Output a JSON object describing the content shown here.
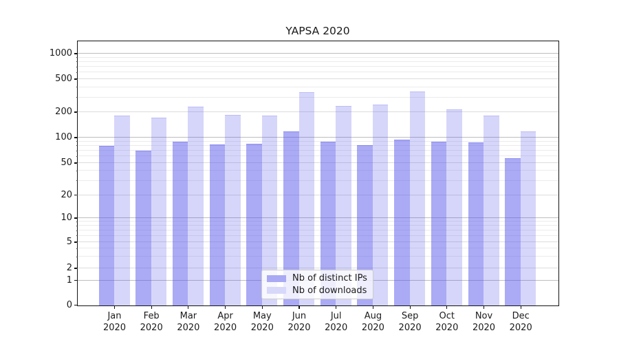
{
  "title": "YAPSA 2020",
  "legend": {
    "items": [
      {
        "label": "Nb of distinct IPs",
        "swatch_color": "#a9a9f4"
      },
      {
        "label": "Nb of downloads",
        "swatch_color": "#d8d8fa"
      }
    ]
  },
  "y_axis": {
    "tick_labels": [
      "0",
      "1",
      "2",
      "5",
      "10",
      "20",
      "50",
      "100",
      "200",
      "500",
      "1000"
    ],
    "tick_values": [
      0,
      1,
      2,
      5,
      10,
      20,
      50,
      100,
      200,
      500,
      1000
    ]
  },
  "x_axis": {
    "months": [
      "Jan",
      "Feb",
      "Mar",
      "Apr",
      "May",
      "Jun",
      "Jul",
      "Aug",
      "Sep",
      "Oct",
      "Nov",
      "Dec"
    ],
    "year": "2020"
  },
  "colors": {
    "bar_distinct_ips_fill": "rgba(85,85,235,0.5)",
    "bar_distinct_ips_edge": "rgba(85,85,235,0.35)",
    "bar_downloads_fill": "rgba(85,85,235,0.24)",
    "bar_downloads_edge": "rgba(85,85,235,0.2)",
    "grid_major": "#bdbdbd",
    "grid_labeled_minor": "#dcdcdc",
    "grid_minor": "#ebebeb",
    "axis_text": "#1a1a1a"
  },
  "chart_data": {
    "type": "bar",
    "title": "YAPSA 2020",
    "categories": [
      "Jan 2020",
      "Feb 2020",
      "Mar 2020",
      "Apr 2020",
      "May 2020",
      "Jun 2020",
      "Jul 2020",
      "Aug 2020",
      "Sep 2020",
      "Oct 2020",
      "Nov 2020",
      "Dec 2020"
    ],
    "series": [
      {
        "name": "Nb of distinct IPs",
        "values": [
          80,
          71,
          91,
          83,
          86,
          120,
          91,
          82,
          95,
          90,
          88,
          58
        ]
      },
      {
        "name": "Nb of downloads",
        "values": [
          185,
          175,
          235,
          186,
          185,
          350,
          240,
          250,
          360,
          220,
          185,
          120
        ]
      }
    ],
    "yscale": "symlog",
    "yticks": [
      0,
      1,
      2,
      5,
      10,
      20,
      50,
      100,
      200,
      500,
      1000
    ],
    "ylim": [
      0,
      1500
    ],
    "grid": "both",
    "legend_position": "lower center"
  }
}
